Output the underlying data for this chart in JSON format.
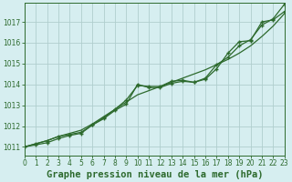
{
  "title": "Graphe pression niveau de la mer (hPa)",
  "background_color": "#d6eef0",
  "grid_color": "#b0cece",
  "line_color": "#2d6a2d",
  "marker_color": "#2d6a2d",
  "xlim": [
    0,
    23
  ],
  "ylim": [
    1010.6,
    1017.9
  ],
  "yticks": [
    1011,
    1012,
    1013,
    1014,
    1015,
    1016,
    1017
  ],
  "xticks": [
    0,
    1,
    2,
    3,
    4,
    5,
    6,
    7,
    8,
    9,
    10,
    11,
    12,
    13,
    14,
    15,
    16,
    17,
    18,
    19,
    20,
    21,
    22,
    23
  ],
  "series_smooth": [
    1011.0,
    1011.15,
    1011.3,
    1011.5,
    1011.65,
    1011.8,
    1012.1,
    1012.45,
    1012.8,
    1013.15,
    1013.5,
    1013.7,
    1013.9,
    1014.1,
    1014.3,
    1014.5,
    1014.7,
    1014.95,
    1015.2,
    1015.5,
    1015.85,
    1016.3,
    1016.8,
    1017.4
  ],
  "series_markers1": [
    1011.0,
    1011.1,
    1011.2,
    1011.4,
    1011.55,
    1011.65,
    1012.05,
    1012.35,
    1012.75,
    1013.05,
    1014.0,
    1013.85,
    1013.85,
    1014.05,
    1014.15,
    1014.1,
    1014.25,
    1014.75,
    1015.5,
    1016.05,
    1016.1,
    1017.0,
    1017.1,
    1017.5
  ],
  "series_markers2": [
    1011.0,
    1011.15,
    1011.3,
    1011.5,
    1011.6,
    1011.7,
    1012.05,
    1012.4,
    1012.8,
    1013.25,
    1013.95,
    1013.9,
    1013.9,
    1014.15,
    1014.2,
    1014.1,
    1014.3,
    1014.95,
    1015.3,
    1015.85,
    1016.15,
    1016.85,
    1017.15,
    1017.85
  ],
  "hours": [
    0,
    1,
    2,
    3,
    4,
    5,
    6,
    7,
    8,
    9,
    10,
    11,
    12,
    13,
    14,
    15,
    16,
    17,
    18,
    19,
    20,
    21,
    22,
    23
  ],
  "fig_width": 3.2,
  "fig_height": 2.0,
  "dpi": 100
}
